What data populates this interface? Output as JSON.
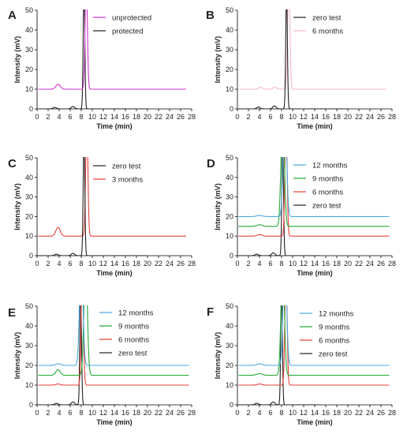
{
  "chart_data": [
    {
      "panel": "A",
      "type": "line",
      "xlabel": "Time (min)",
      "ylabel": "Intensity (mV)",
      "xlim": [
        0,
        28
      ],
      "ylim": [
        0,
        50
      ],
      "xticks": [
        0,
        2,
        4,
        6,
        8,
        10,
        12,
        14,
        16,
        18,
        20,
        22,
        24,
        26,
        28
      ],
      "yticks": [
        0,
        10,
        20,
        30,
        40,
        50
      ],
      "legend_position": "top-center",
      "series": [
        {
          "name": "unprotected",
          "color": "#cc33cc",
          "baseline": 10,
          "x_end": 27,
          "peaks": [
            [
              3.8,
              2.5,
              0.4
            ],
            [
              8.9,
              60,
              0.2
            ]
          ]
        },
        {
          "name": "protected",
          "color": "#222222",
          "baseline": 0,
          "x_end": 20,
          "peaks": [
            [
              3.2,
              0.8,
              0.3
            ],
            [
              6.5,
              1.2,
              0.3
            ],
            [
              8.5,
              60,
              0.15
            ]
          ]
        }
      ]
    },
    {
      "panel": "B",
      "type": "line",
      "xlabel": "Time (min)",
      "ylabel": "Intensity (mV)",
      "xlim": [
        0,
        28
      ],
      "ylim": [
        0,
        50
      ],
      "xticks": [
        0,
        2,
        4,
        6,
        8,
        10,
        12,
        14,
        16,
        18,
        20,
        22,
        24,
        26,
        28
      ],
      "yticks": [
        0,
        10,
        20,
        30,
        40,
        50
      ],
      "legend_position": "top-center",
      "series": [
        {
          "name": "zero test",
          "color": "#222222",
          "baseline": 0,
          "x_end": 20,
          "peaks": [
            [
              3.8,
              1,
              0.3
            ],
            [
              6.7,
              1.5,
              0.3
            ],
            [
              8.9,
              60,
              0.15
            ]
          ]
        },
        {
          "name": "6 months",
          "color": "#f5b8c8",
          "baseline": 10,
          "x_end": 27,
          "peaks": [
            [
              4.2,
              1,
              0.3
            ],
            [
              6.8,
              1.2,
              0.3
            ],
            [
              9.3,
              60,
              0.2
            ]
          ]
        }
      ]
    },
    {
      "panel": "C",
      "type": "line",
      "xlabel": "Time (min)",
      "ylabel": "Intensity (mV)",
      "xlim": [
        0,
        28
      ],
      "ylim": [
        0,
        50
      ],
      "xticks": [
        0,
        2,
        4,
        6,
        8,
        10,
        12,
        14,
        16,
        18,
        20,
        22,
        24,
        26,
        28
      ],
      "yticks": [
        0,
        10,
        20,
        30,
        40,
        50
      ],
      "legend_position": "top-center",
      "series": [
        {
          "name": "zero test",
          "color": "#222222",
          "baseline": 0,
          "x_end": 20,
          "peaks": [
            [
              3.5,
              0.8,
              0.3
            ],
            [
              6.5,
              1.2,
              0.3
            ],
            [
              8.5,
              60,
              0.15
            ]
          ]
        },
        {
          "name": "3 months",
          "color": "#e8403a",
          "baseline": 10,
          "x_end": 27,
          "peaks": [
            [
              3.8,
              4.5,
              0.4
            ],
            [
              9.0,
              60,
              0.2
            ]
          ]
        }
      ]
    },
    {
      "panel": "D",
      "type": "line",
      "xlabel": "Time (min)",
      "ylabel": "Intensity (mV)",
      "xlim": [
        0,
        28
      ],
      "ylim": [
        0,
        50
      ],
      "xticks": [
        0,
        2,
        4,
        6,
        8,
        10,
        12,
        14,
        16,
        18,
        20,
        22,
        24,
        26,
        28
      ],
      "yticks": [
        0,
        10,
        20,
        30,
        40,
        50
      ],
      "legend_position": "top-right",
      "series": [
        {
          "name": "12 months",
          "color": "#4aa8e0",
          "baseline": 20,
          "x_end": 27.5,
          "peaks": [
            [
              4.0,
              0.6,
              0.5
            ],
            [
              8.6,
              60,
              0.3
            ]
          ]
        },
        {
          "name": "9 months",
          "color": "#22aa33",
          "baseline": 15,
          "x_end": 27.5,
          "peaks": [
            [
              4.0,
              0.8,
              0.5
            ],
            [
              8.2,
              60,
              0.3
            ]
          ]
        },
        {
          "name": "6 months",
          "color": "#e8403a",
          "baseline": 10,
          "x_end": 27.5,
          "peaks": [
            [
              4.0,
              0.8,
              0.4
            ],
            [
              8.8,
              60,
              0.2
            ]
          ]
        },
        {
          "name": "zero test",
          "color": "#222222",
          "baseline": 0,
          "x_end": 15,
          "peaks": [
            [
              3.5,
              0.8,
              0.3
            ],
            [
              6.5,
              1.5,
              0.3
            ],
            [
              8.2,
              60,
              0.15
            ]
          ]
        }
      ]
    },
    {
      "panel": "E",
      "type": "line",
      "xlabel": "Time (min)",
      "ylabel": "Intensity (mV)",
      "xlim": [
        0,
        28
      ],
      "ylim": [
        0,
        50
      ],
      "xticks": [
        0,
        2,
        4,
        6,
        8,
        10,
        12,
        14,
        16,
        18,
        20,
        22,
        24,
        26,
        28
      ],
      "yticks": [
        0,
        10,
        20,
        30,
        40,
        50
      ],
      "legend_position": "top-right",
      "series": [
        {
          "name": "12 months",
          "color": "#4aa8e0",
          "baseline": 20,
          "x_end": 27.5,
          "peaks": [
            [
              3.8,
              0.8,
              0.5
            ],
            [
              8.0,
              60,
              0.3
            ]
          ]
        },
        {
          "name": "9 months",
          "color": "#22aa33",
          "baseline": 15,
          "x_end": 27.5,
          "peaks": [
            [
              3.8,
              2.8,
              0.4
            ],
            [
              8.8,
              60,
              0.3
            ]
          ]
        },
        {
          "name": "6 months",
          "color": "#e8403a",
          "baseline": 10,
          "x_end": 27.5,
          "peaks": [
            [
              3.8,
              0.6,
              0.4
            ],
            [
              8.2,
              60,
              0.2
            ]
          ]
        },
        {
          "name": "zero test",
          "color": "#222222",
          "baseline": 0,
          "x_end": 15,
          "peaks": [
            [
              3.5,
              0.8,
              0.3
            ],
            [
              6.5,
              1.5,
              0.3
            ],
            [
              7.9,
              60,
              0.15
            ]
          ]
        }
      ]
    },
    {
      "panel": "F",
      "type": "line",
      "xlabel": "Time (min)",
      "ylabel": "Intensity (mV)",
      "xlim": [
        0,
        28
      ],
      "ylim": [
        0,
        50
      ],
      "xticks": [
        0,
        2,
        4,
        6,
        8,
        10,
        12,
        14,
        16,
        18,
        20,
        22,
        24,
        26,
        28
      ],
      "yticks": [
        0,
        10,
        20,
        30,
        40,
        50
      ],
      "legend_position": "top-right",
      "series": [
        {
          "name": "12 months",
          "color": "#4aa8e0",
          "baseline": 20,
          "x_end": 27.5,
          "peaks": [
            [
              4.0,
              0.8,
              0.5
            ],
            [
              8.6,
              60,
              0.3
            ]
          ]
        },
        {
          "name": "9 months",
          "color": "#22aa33",
          "baseline": 15,
          "x_end": 27.5,
          "peaks": [
            [
              4.0,
              0.8,
              0.5
            ],
            [
              8.2,
              60,
              0.3
            ]
          ]
        },
        {
          "name": "6 months",
          "color": "#e8403a",
          "baseline": 10,
          "x_end": 27.5,
          "peaks": [
            [
              4.0,
              0.6,
              0.4
            ],
            [
              8.8,
              60,
              0.2
            ]
          ]
        },
        {
          "name": "zero test",
          "color": "#222222",
          "baseline": 0,
          "x_end": 15,
          "peaks": [
            [
              3.5,
              0.8,
              0.3
            ],
            [
              6.5,
              1.5,
              0.3
            ],
            [
              8.0,
              60,
              0.15
            ]
          ]
        }
      ]
    }
  ]
}
